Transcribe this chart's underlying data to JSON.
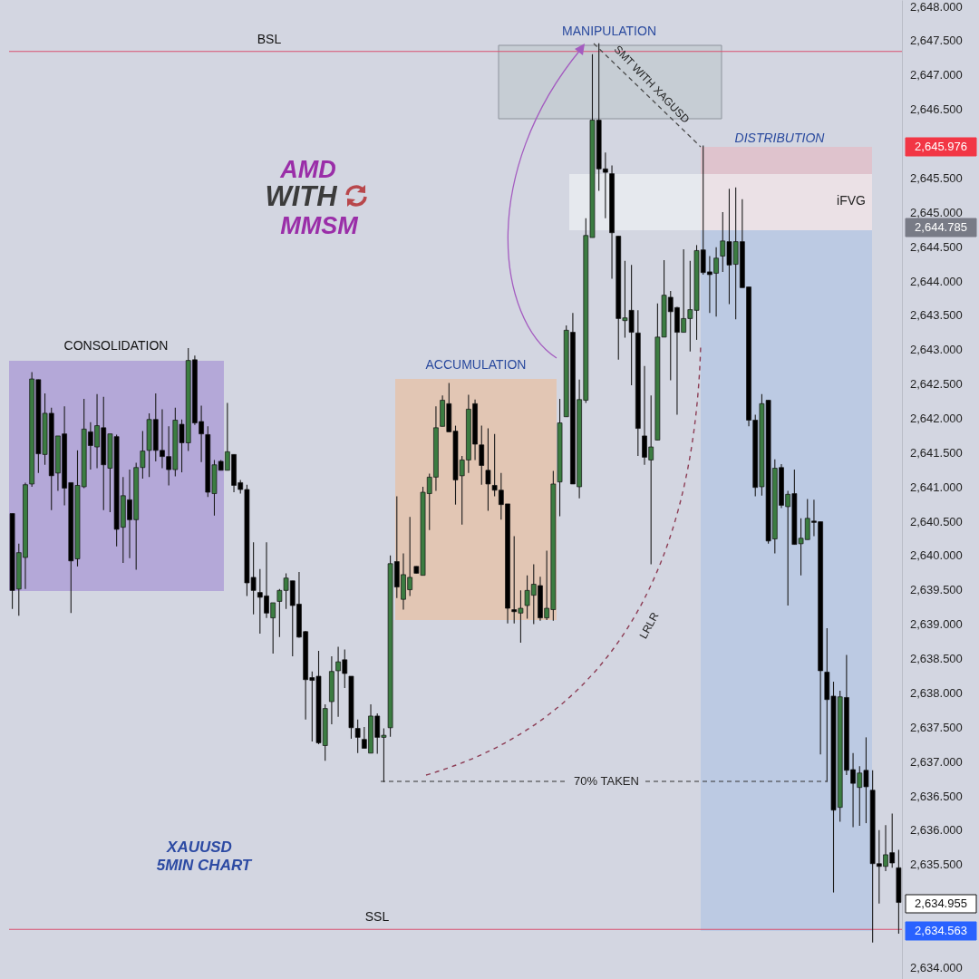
{
  "chart_data": {
    "type": "candlestick",
    "categories": [
      null,
      null,
      null,
      null,
      null,
      null,
      null,
      null,
      null,
      null,
      null,
      null,
      null,
      null,
      null,
      null,
      null,
      null,
      null,
      null,
      null,
      null,
      null,
      null,
      null,
      null,
      null,
      null,
      null,
      null,
      null,
      null,
      null,
      null,
      null,
      null,
      null,
      null,
      null,
      null,
      null,
      null,
      null,
      null,
      null,
      null,
      null,
      null,
      null,
      null,
      null,
      null,
      null,
      null,
      null,
      null,
      null,
      null,
      null,
      null,
      null,
      null,
      null,
      null,
      null,
      null,
      null,
      null,
      null,
      null,
      null,
      null,
      null,
      null,
      null,
      null,
      null,
      null,
      null,
      null,
      null,
      null,
      null,
      null,
      null,
      null,
      null,
      null,
      null,
      null,
      null,
      null,
      null,
      null,
      null,
      null,
      null,
      null,
      null,
      null,
      null,
      null,
      null,
      null,
      null,
      null,
      null,
      null,
      null,
      null,
      null,
      null,
      null,
      null,
      null,
      null,
      null,
      null,
      null,
      null,
      null,
      null,
      null,
      null,
      null,
      null,
      null,
      null,
      null,
      null,
      null,
      null,
      null,
      null,
      null,
      null,
      null
    ],
    "ohlc": [
      [
        2640.62,
        2640.62,
        2639.23,
        2639.5
      ],
      [
        2639.52,
        2640.18,
        2639.13,
        2640.05
      ],
      [
        2639.98,
        2641.07,
        2639.52,
        2641.04
      ],
      [
        2641.05,
        2642.68,
        2641.01,
        2642.58
      ],
      [
        2642.57,
        2642.57,
        2641.21,
        2641.49
      ],
      [
        2641.48,
        2642.37,
        2641.33,
        2642.08
      ],
      [
        2642.08,
        2642.16,
        2640.67,
        2641.17
      ],
      [
        2641.21,
        2641.75,
        2640.95,
        2641.75
      ],
      [
        2641.78,
        2642.18,
        2640.74,
        2640.99
      ],
      [
        2641.07,
        2641.07,
        2639.17,
        2639.93
      ],
      [
        2639.96,
        2641.54,
        2639.85,
        2641.03
      ],
      [
        2641.01,
        2642.29,
        2640.99,
        2641.85
      ],
      [
        2641.81,
        2641.95,
        2641.26,
        2641.61
      ],
      [
        2641.59,
        2642.36,
        2641.28,
        2641.9
      ],
      [
        2641.87,
        2642.32,
        2640.67,
        2641.33
      ],
      [
        2641.28,
        2641.78,
        2640.64,
        2641.78
      ],
      [
        2641.74,
        2641.77,
        2640.14,
        2640.39
      ],
      [
        2640.42,
        2641.15,
        2639.9,
        2640.88
      ],
      [
        2640.82,
        2641.26,
        2639.97,
        2640.53
      ],
      [
        2640.53,
        2641.36,
        2639.8,
        2641.29
      ],
      [
        2641.29,
        2641.82,
        2641.13,
        2641.53
      ],
      [
        2641.54,
        2642.08,
        2641.15,
        2641.99
      ],
      [
        2641.99,
        2642.37,
        2641.38,
        2641.54
      ],
      [
        2641.54,
        2642.14,
        2641.28,
        2641.45
      ],
      [
        2641.45,
        2641.89,
        2641.03,
        2641.26
      ],
      [
        2641.26,
        2642.16,
        2641.16,
        2641.98
      ],
      [
        2641.92,
        2641.99,
        2641.22,
        2641.65
      ],
      [
        2641.65,
        2643.03,
        2641.53,
        2642.85
      ],
      [
        2642.86,
        2642.92,
        2641.91,
        2641.94
      ],
      [
        2641.96,
        2642.19,
        2641.37,
        2641.78
      ],
      [
        2641.77,
        2641.89,
        2640.86,
        2640.93
      ],
      [
        2640.91,
        2641.4,
        2640.59,
        2641.33
      ],
      [
        2641.38,
        2641.4,
        2641.25,
        2641.25
      ],
      [
        2641.25,
        2642.23,
        2641.25,
        2641.52
      ],
      [
        2641.48,
        2641.48,
        2640.93,
        2641.03
      ],
      [
        2641.07,
        2641.11,
        2640.91,
        2640.97
      ],
      [
        2640.97,
        2641.04,
        2639.42,
        2639.61
      ],
      [
        2639.69,
        2640.2,
        2639.15,
        2639.5
      ],
      [
        2639.47,
        2639.81,
        2638.87,
        2639.4
      ],
      [
        2639.42,
        2640.2,
        2639.1,
        2639.17
      ],
      [
        2639.1,
        2639.32,
        2638.58,
        2639.32
      ],
      [
        2639.34,
        2639.52,
        2638.82,
        2639.5
      ],
      [
        2639.5,
        2639.75,
        2639.23,
        2639.68
      ],
      [
        2639.64,
        2639.64,
        2638.54,
        2639.28
      ],
      [
        2639.3,
        2639.77,
        2638.81,
        2638.82
      ],
      [
        2638.9,
        2638.91,
        2637.62,
        2638.2
      ],
      [
        2638.23,
        2638.32,
        2637.3,
        2638.19
      ],
      [
        2638.25,
        2638.62,
        2637.26,
        2637.28
      ],
      [
        2637.24,
        2637.84,
        2637.02,
        2637.78
      ],
      [
        2637.88,
        2638.54,
        2637.55,
        2638.32
      ],
      [
        2638.33,
        2638.68,
        2637.66,
        2638.46
      ],
      [
        2638.49,
        2638.64,
        2638.08,
        2638.29
      ],
      [
        2638.25,
        2638.25,
        2637.34,
        2637.5
      ],
      [
        2637.49,
        2637.62,
        2637.13,
        2637.36
      ],
      [
        2637.33,
        2637.51,
        2637.2,
        2637.2
      ],
      [
        2637.13,
        2637.84,
        2637.13,
        2637.67
      ],
      [
        2637.67,
        2637.71,
        2637.12,
        2637.36
      ],
      [
        2637.36,
        2637.49,
        2636.71,
        2637.39
      ],
      [
        2637.5,
        2640.01,
        2637.37,
        2639.89
      ],
      [
        2639.92,
        2640.87,
        2639.39,
        2639.55
      ],
      [
        2639.37,
        2640.04,
        2639.22,
        2639.73
      ],
      [
        2639.51,
        2640.57,
        2639.42,
        2639.69
      ],
      [
        2639.85,
        2639.85,
        2639.75,
        2639.75
      ],
      [
        2639.72,
        2641.01,
        2639.72,
        2640.93
      ],
      [
        2640.91,
        2641.2,
        2640.38,
        2641.15
      ],
      [
        2641.15,
        2642.18,
        2640.95,
        2641.87
      ],
      [
        2641.89,
        2642.34,
        2641.89,
        2642.27
      ],
      [
        2642.22,
        2642.52,
        2641.81,
        2641.81
      ],
      [
        2641.82,
        2641.9,
        2640.75,
        2641.11
      ],
      [
        2641.17,
        2641.46,
        2640.46,
        2641.4
      ],
      [
        2641.4,
        2642.35,
        2641.21,
        2642.14
      ],
      [
        2642.22,
        2642.28,
        2641.4,
        2641.63
      ],
      [
        2641.62,
        2641.9,
        2641.04,
        2641.32
      ],
      [
        2641.25,
        2641.86,
        2640.66,
        2641.05
      ],
      [
        2641.03,
        2641.78,
        2640.87,
        2640.96
      ],
      [
        2640.96,
        2641.21,
        2640.53,
        2640.75
      ],
      [
        2640.76,
        2640.76,
        2639.02,
        2639.24
      ],
      [
        2639.22,
        2640.29,
        2639.02,
        2639.19
      ],
      [
        2639.17,
        2639.5,
        2638.74,
        2639.24
      ],
      [
        2639.28,
        2639.72,
        2639.09,
        2639.5
      ],
      [
        2639.43,
        2639.88,
        2639.01,
        2639.59
      ],
      [
        2639.57,
        2639.7,
        2639.06,
        2639.1
      ],
      [
        2639.1,
        2640.08,
        2639.07,
        2639.24
      ],
      [
        2639.22,
        2641.24,
        2639.06,
        2641.05
      ],
      [
        2641.08,
        2642.29,
        2640.58,
        2641.94
      ],
      [
        2642.03,
        2643.36,
        2642.03,
        2643.29
      ],
      [
        2643.26,
        2643.54,
        2641.05,
        2641.05
      ],
      [
        2641.01,
        2642.57,
        2640.84,
        2642.28
      ],
      [
        2642.27,
        2644.92,
        2642.23,
        2644.67
      ],
      [
        2644.64,
        2647.31,
        2644.64,
        2646.35
      ],
      [
        2646.35,
        2647.47,
        2645.32,
        2645.64
      ],
      [
        2645.64,
        2645.88,
        2644.92,
        2645.59
      ],
      [
        2645.57,
        2645.69,
        2644.04,
        2644.71
      ],
      [
        2644.66,
        2644.66,
        2642.86,
        2643.46
      ],
      [
        2643.43,
        2644.3,
        2643.18,
        2643.47
      ],
      [
        2643.58,
        2644.24,
        2642.49,
        2643.26
      ],
      [
        2643.25,
        2643.58,
        2641.46,
        2641.86
      ],
      [
        2641.75,
        2642.77,
        2641.33,
        2641.44
      ],
      [
        2641.4,
        2642.34,
        2639.88,
        2641.59
      ],
      [
        2641.69,
        2643.68,
        2641.69,
        2643.19
      ],
      [
        2643.19,
        2644.31,
        2643.19,
        2643.8
      ],
      [
        2643.77,
        2643.86,
        2642.56,
        2643.56
      ],
      [
        2643.62,
        2643.63,
        2642.06,
        2643.26
      ],
      [
        2643.26,
        2644.47,
        2643.26,
        2643.46
      ],
      [
        2643.46,
        2644.3,
        2642.98,
        2643.59
      ],
      [
        2643.58,
        2644.53,
        2643.15,
        2644.45
      ],
      [
        2644.46,
        2645.98,
        2644.1,
        2644.13
      ],
      [
        2644.14,
        2644.37,
        2643.54,
        2644.1
      ],
      [
        2644.12,
        2644.5,
        2643.49,
        2644.34
      ],
      [
        2644.37,
        2645.01,
        2644.14,
        2644.59
      ],
      [
        2644.58,
        2645.35,
        2643.67,
        2644.24
      ],
      [
        2644.25,
        2645.37,
        2643.45,
        2644.58
      ],
      [
        2644.58,
        2645.2,
        2643.91,
        2643.91
      ],
      [
        2643.92,
        2643.92,
        2641.89,
        2641.98
      ],
      [
        2641.98,
        2642.06,
        2640.87,
        2641.0
      ],
      [
        2641.01,
        2642.36,
        2640.88,
        2642.22
      ],
      [
        2642.27,
        2642.27,
        2640.18,
        2640.22
      ],
      [
        2640.25,
        2641.41,
        2640.04,
        2641.28
      ],
      [
        2641.29,
        2641.34,
        2640.7,
        2640.74
      ],
      [
        2640.72,
        2640.95,
        2639.28,
        2640.9
      ],
      [
        2640.91,
        2641.26,
        2640.17,
        2640.17
      ],
      [
        2640.18,
        2640.55,
        2639.72,
        2640.26
      ],
      [
        2640.24,
        2640.83,
        2640.24,
        2640.55
      ],
      [
        2640.51,
        2640.82,
        2640.29,
        2640.49
      ],
      [
        2640.5,
        2640.5,
        2637.11,
        2638.33
      ],
      [
        2638.31,
        2638.95,
        2636.71,
        2637.91
      ],
      [
        2637.96,
        2638.17,
        2635.1,
        2636.3
      ],
      [
        2636.34,
        2638.04,
        2636.13,
        2637.95
      ],
      [
        2637.94,
        2638.56,
        2636.81,
        2636.88
      ],
      [
        2636.89,
        2637.13,
        2636.05,
        2636.69
      ],
      [
        2636.63,
        2636.94,
        2636.07,
        2636.84
      ],
      [
        2636.88,
        2637.36,
        2636.11,
        2636.64
      ],
      [
        2636.59,
        2636.88,
        2634.37,
        2635.52
      ],
      [
        2635.52,
        2636.01,
        2634.94,
        2635.48
      ],
      [
        2635.48,
        2636.08,
        2635.41,
        2635.65
      ],
      [
        2635.68,
        2636.25,
        2635.46,
        2635.53
      ],
      [
        2635.46,
        2635.72,
        2634.5,
        2634.955
      ]
    ],
    "colors": [
      "#000000",
      "#3b7c41",
      "#3b7c41",
      "#3b7c41",
      "#000000",
      "#3b7c41",
      "#000000",
      "#3b7c41",
      "#000000",
      "#000000",
      "#3b7c41",
      "#3b7c41",
      "#000000",
      "#3b7c41",
      "#000000",
      "#3b7c41",
      "#000000",
      "#3b7c41",
      "#000000",
      "#3b7c41",
      "#3b7c41",
      "#3b7c41",
      "#000000",
      "#000000",
      "#000000",
      "#3b7c41",
      "#000000",
      "#3b7c41",
      "#000000",
      "#000000",
      "#000000",
      "#3b7c41",
      "#000000",
      "#3b7c41",
      "#000000",
      "#000000",
      "#000000",
      "#000000",
      "#000000",
      "#000000",
      "#3b7c41",
      "#3b7c41",
      "#3b7c41",
      "#000000",
      "#000000",
      "#000000",
      "#000000",
      "#000000",
      "#3b7c41",
      "#3b7c41",
      "#3b7c41",
      "#000000",
      "#000000",
      "#000000",
      "#000000",
      "#3b7c41",
      "#000000",
      "#3b7c41",
      "#3b7c41",
      "#000000",
      "#3b7c41",
      "#3b7c41",
      "#000000",
      "#3b7c41",
      "#3b7c41",
      "#3b7c41",
      "#3b7c41",
      "#000000",
      "#000000",
      "#3b7c41",
      "#3b7c41",
      "#000000",
      "#000000",
      "#000000",
      "#000000",
      "#000000",
      "#000000",
      "#000000",
      "#3b7c41",
      "#3b7c41",
      "#3b7c41",
      "#000000",
      "#3b7c41",
      "#3b7c41",
      "#3b7c41",
      "#3b7c41",
      "#000000",
      "#3b7c41",
      "#3b7c41",
      "#3b7c41",
      "#000000",
      "#000000",
      "#000000",
      "#000000",
      "#3b7c41",
      "#000000",
      "#000000",
      "#000000",
      "#3b7c41",
      "#3b7c41",
      "#3b7c41",
      "#000000",
      "#000000",
      "#3b7c41",
      "#3b7c41",
      "#3b7c41",
      "#000000",
      "#000000",
      "#3b7c41",
      "#3b7c41",
      "#000000",
      "#3b7c41",
      "#000000",
      "#000000",
      "#000000",
      "#3b7c41",
      "#000000",
      "#3b7c41",
      "#000000",
      "#3b7c41",
      "#000000",
      "#3b7c41",
      "#3b7c41",
      "#000000",
      "#000000",
      "#000000",
      "#000000",
      "#3b7c41",
      "#000000",
      "#000000",
      "#3b7c41",
      "#000000",
      "#000000",
      "#000000",
      "#3b7c41",
      "#000000",
      "#000000"
    ],
    "ylim": [
      2633.84,
      2648.1
    ],
    "yticks": [
      {
        "value": 2634,
        "label": "2,634.000"
      },
      {
        "value": 2635.5,
        "label": "2,635.500"
      },
      {
        "value": 2636,
        "label": "2,636.000"
      },
      {
        "value": 2636.5,
        "label": "2,636.500"
      },
      {
        "value": 2637,
        "label": "2,637.000"
      },
      {
        "value": 2637.5,
        "label": "2,637.500"
      },
      {
        "value": 2638,
        "label": "2,638.000"
      },
      {
        "value": 2638.5,
        "label": "2,638.500"
      },
      {
        "value": 2639,
        "label": "2,639.000"
      },
      {
        "value": 2639.5,
        "label": "2,639.500"
      },
      {
        "value": 2640,
        "label": "2,640.000"
      },
      {
        "value": 2640.5,
        "label": "2,640.500"
      },
      {
        "value": 2641,
        "label": "2,641.000"
      },
      {
        "value": 2641.5,
        "label": "2,641.500"
      },
      {
        "value": 2642,
        "label": "2,642.000"
      },
      {
        "value": 2642.5,
        "label": "2,642.500"
      },
      {
        "value": 2643,
        "label": "2,643.000"
      },
      {
        "value": 2643.5,
        "label": "2,643.500"
      },
      {
        "value": 2644,
        "label": "2,644.000"
      },
      {
        "value": 2644.5,
        "label": "2,644.500"
      },
      {
        "value": 2645,
        "label": "2,645.000"
      },
      {
        "value": 2645.5,
        "label": "2,645.500"
      },
      {
        "value": 2646.5,
        "label": "2,646.500"
      },
      {
        "value": 2647,
        "label": "2,647.000"
      },
      {
        "value": 2647.5,
        "label": "2,647.500"
      },
      {
        "value": 2648,
        "label": "2,648.000"
      }
    ],
    "tick_labels": "y",
    "ref_lines": [
      {
        "axis": "y",
        "value": 2647.35,
        "label": "BSL",
        "color": "#d9506f"
      },
      {
        "axis": "y",
        "value": 2634.563,
        "label": "SSL",
        "color": "#d9506f"
      }
    ],
    "annotations": [
      "AMD",
      "WITH",
      "MMSM",
      "XAUUSD",
      "5MIN CHART",
      "CONSOLIDATION",
      "ACCUMULATION",
      "MANIPULATION",
      "DISTRIBUTION",
      "iFVG",
      "SMT WITH XAGUSD",
      "LRLR",
      "70%  TAKEN",
      "2,645.976",
      "2,644.785",
      "2,634.955",
      "2,634.563"
    ]
  }
}
